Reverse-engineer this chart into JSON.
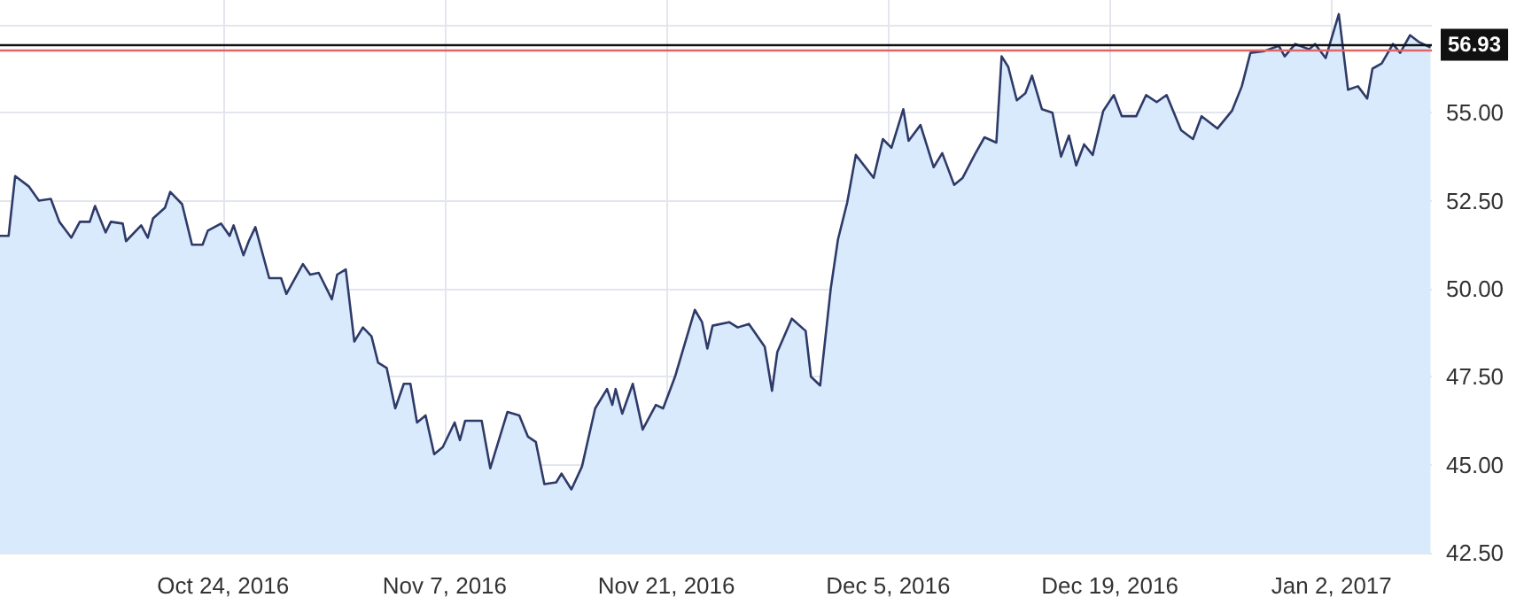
{
  "chart_data": {
    "type": "area",
    "x": [
      "2016-10-09T22:00",
      "2016-10-10T11:00",
      "2016-10-10T21:00",
      "2016-10-11T18:00",
      "2016-10-12T09:00",
      "2016-10-13T03:00",
      "2016-10-13T16:00",
      "2016-10-14T10:00",
      "2016-10-14T23:00",
      "2016-10-15T14:00",
      "2016-10-15T22:00",
      "2016-10-16T14:00",
      "2016-10-16T22:00",
      "2016-10-17T16:00",
      "2016-10-17T21:00",
      "2016-10-18T20:00",
      "2016-10-19T06:00",
      "2016-10-19T14:00",
      "2016-10-20T08:00",
      "2016-10-20T16:00",
      "2016-10-21T10:00",
      "2016-10-22T01:00",
      "2016-10-22T17:00",
      "2016-10-23T01:00",
      "2016-10-23T21:00",
      "2016-10-24T10:00",
      "2016-10-24T16:00",
      "2016-10-25T07:00",
      "2016-10-25T15:00",
      "2016-10-26T01:00",
      "2016-10-26T22:00",
      "2016-10-27T16:00",
      "2016-10-28T00:00",
      "2016-10-29T01:00",
      "2016-10-29T12:00",
      "2016-10-30T01:00",
      "2016-10-30T21:00",
      "2016-10-31T05:00",
      "2016-10-31T18:00",
      "2016-11-01T07:00",
      "2016-11-01T20:00",
      "2016-11-02T09:00",
      "2016-11-02T19:00",
      "2016-11-03T08:00",
      "2016-11-03T21:00",
      "2016-11-04T10:00",
      "2016-11-04T20:00",
      "2016-11-05T06:00",
      "2016-11-05T19:00",
      "2016-11-06T08:00",
      "2016-11-06T21:00",
      "2016-11-07T15:00",
      "2016-11-07T23:00",
      "2016-11-08T07:00",
      "2016-11-09T08:00",
      "2016-11-09T21:00",
      "2016-11-10T23:00",
      "2016-11-11T17:00",
      "2016-11-12T06:00",
      "2016-11-12T18:00",
      "2016-11-13T07:00",
      "2016-11-14T01:00",
      "2016-11-14T09:00",
      "2016-11-15T00:00",
      "2016-11-15T16:00",
      "2016-11-16T12:00",
      "2016-11-17T06:00",
      "2016-11-17T14:00",
      "2016-11-17T19:00",
      "2016-11-18T05:00",
      "2016-11-18T21:00",
      "2016-11-19T12:00",
      "2016-11-20T08:00",
      "2016-11-20T19:00",
      "2016-11-21T13:00",
      "2016-11-22T19:00",
      "2016-11-23T06:00",
      "2016-11-23T14:00",
      "2016-11-23T22:00",
      "2016-11-24T23:00",
      "2016-11-25T12:00",
      "2016-11-26T05:00",
      "2016-11-27T05:00",
      "2016-11-27T16:00",
      "2016-11-28T00:00",
      "2016-11-28T22:00",
      "2016-11-29T19:00",
      "2016-11-30T03:00",
      "2016-11-30T17:00",
      "2016-12-01T09:00",
      "2016-12-01T20:00",
      "2016-12-02T10:00",
      "2016-12-02T23:00",
      "2016-12-04T02:00",
      "2016-12-04T16:00",
      "2016-12-05T05:00",
      "2016-12-05T23:00",
      "2016-12-06T07:00",
      "2016-12-07T01:00",
      "2016-12-07T21:00",
      "2016-12-08T10:00",
      "2016-12-09T04:00",
      "2016-12-09T17:00",
      "2016-12-10T11:00",
      "2016-12-11T02:00",
      "2016-12-11T20:00",
      "2016-12-12T04:00",
      "2016-12-12T14:00",
      "2016-12-13T03:00",
      "2016-12-13T16:00",
      "2016-12-14T02:00",
      "2016-12-14T17:00",
      "2016-12-15T09:00",
      "2016-12-15T22:00",
      "2016-12-16T10:00",
      "2016-12-16T21:00",
      "2016-12-17T09:00",
      "2016-12-17T22:00",
      "2016-12-18T14:00",
      "2016-12-19T06:00",
      "2016-12-19T18:00",
      "2016-12-20T16:00",
      "2016-12-21T07:00",
      "2016-12-21T23:00",
      "2016-12-22T14:00",
      "2016-12-23T12:00",
      "2016-12-24T06:00",
      "2016-12-24T19:00",
      "2016-12-25T19:00",
      "2016-12-26T17:00",
      "2016-12-27T08:00",
      "2016-12-27T21:00",
      "2016-12-28T18:00",
      "2016-12-29T16:00",
      "2016-12-30T01:00",
      "2016-12-30T17:00",
      "2016-12-31T14:00",
      "2016-12-31T23:00",
      "2017-01-01T15:00",
      "2017-01-02T11:00",
      "2017-01-03T01:00",
      "2017-01-03T16:00",
      "2017-01-04T06:00",
      "2017-01-04T14:00",
      "2017-01-05T04:00",
      "2017-01-05T21:00",
      "2017-01-06T08:00",
      "2017-01-06T23:00",
      "2017-01-07T13:00",
      "2017-01-08T06:00"
    ],
    "values": [
      51.5,
      51.5,
      53.2,
      52.9,
      52.5,
      52.55,
      51.9,
      51.45,
      51.9,
      51.9,
      52.35,
      51.6,
      51.9,
      51.85,
      51.35,
      51.8,
      51.45,
      52.0,
      52.3,
      52.75,
      52.4,
      51.25,
      51.25,
      51.65,
      51.85,
      51.5,
      51.8,
      50.95,
      51.35,
      51.75,
      50.3,
      50.3,
      49.85,
      50.7,
      50.4,
      50.45,
      49.7,
      50.4,
      50.55,
      48.5,
      48.9,
      48.65,
      47.9,
      47.75,
      46.6,
      47.3,
      47.3,
      46.2,
      46.4,
      45.3,
      45.5,
      46.2,
      45.7,
      46.25,
      46.25,
      44.9,
      46.5,
      46.4,
      45.8,
      45.65,
      44.45,
      44.5,
      44.75,
      44.3,
      44.95,
      46.6,
      47.15,
      46.7,
      47.15,
      46.45,
      47.3,
      46.0,
      46.7,
      46.6,
      47.5,
      49.4,
      49.05,
      48.3,
      48.95,
      49.05,
      48.9,
      49.0,
      48.35,
      47.1,
      48.2,
      49.15,
      48.8,
      47.5,
      47.25,
      50.0,
      51.4,
      52.45,
      53.8,
      53.15,
      54.25,
      54.0,
      55.1,
      54.2,
      54.65,
      53.45,
      53.85,
      52.95,
      53.15,
      53.8,
      54.3,
      54.15,
      56.6,
      56.3,
      55.35,
      55.55,
      56.05,
      55.1,
      55.0,
      53.75,
      54.35,
      53.5,
      54.1,
      53.8,
      55.05,
      55.5,
      54.9,
      54.9,
      55.5,
      55.3,
      55.5,
      54.5,
      54.25,
      54.9,
      54.55,
      55.05,
      55.75,
      56.7,
      56.75,
      56.9,
      56.6,
      56.95,
      56.8,
      56.95,
      56.55,
      57.8,
      55.65,
      55.75,
      55.4,
      56.25,
      56.4,
      56.95,
      56.7,
      57.2,
      57.0,
      56.85
    ],
    "color": "#2e3a68",
    "xlim": [
      "2016-10-09T22:00",
      "2017-01-08T08:00"
    ],
    "xticks": [
      {
        "value": "2016-10-24",
        "label": "Oct 24, 2016"
      },
      {
        "value": "2016-11-07",
        "label": "Nov 7, 2016"
      },
      {
        "value": "2016-11-21",
        "label": "Nov 21, 2016"
      },
      {
        "value": "2016-12-05",
        "label": "Dec 5, 2016"
      },
      {
        "value": "2016-12-19",
        "label": "Dec 19, 2016"
      },
      {
        "value": "2017-01-02",
        "label": "Jan 2, 2017"
      }
    ],
    "ylim": [
      42.5,
      58.2
    ],
    "yticks": [
      {
        "value": 42.5,
        "label": "42.50"
      },
      {
        "value": 45,
        "label": "45.00"
      },
      {
        "value": 47.5,
        "label": "47.50"
      },
      {
        "value": 50,
        "label": "50.00"
      },
      {
        "value": 52.5,
        "label": "52.50"
      },
      {
        "value": 55,
        "label": "55.00"
      },
      {
        "value": 57.5,
        "label": null
      }
    ],
    "ref_lines": [
      {
        "axis": "y",
        "value": 56.93,
        "label": "56.93",
        "color": "#111111"
      },
      {
        "axis": "y",
        "value": 56.8,
        "color": "#e06666"
      }
    ],
    "grid": true,
    "marker": "none",
    "line_style": "solid"
  }
}
